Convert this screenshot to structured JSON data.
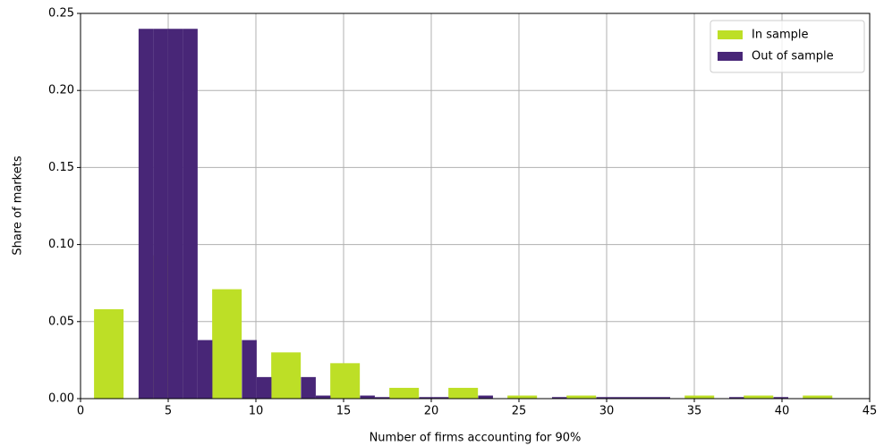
{
  "chart_data": {
    "type": "histogram",
    "xlabel": "Number of firms accounting for 90%",
    "ylabel": "Share of markets",
    "xlim": [
      0,
      45
    ],
    "ylim": [
      0,
      0.25
    ],
    "xticks": [
      0,
      5,
      10,
      15,
      20,
      25,
      30,
      35,
      40,
      45
    ],
    "yticks": [
      {
        "value": 0,
        "label": "0.00"
      },
      {
        "value": 0.05,
        "label": "0.05"
      },
      {
        "value": 0.1,
        "label": "0.10"
      },
      {
        "value": 0.15,
        "label": "0.15"
      },
      {
        "value": 0.2,
        "label": "0.20"
      },
      {
        "value": 0.25,
        "label": "0.25"
      }
    ],
    "grid": true,
    "legend": "upper right",
    "series": [
      {
        "name": "In sample",
        "color": "#bddf26",
        "bins": [
          0.77,
          2.454,
          4.138,
          5.822,
          7.506,
          9.19,
          10.874,
          12.558,
          14.242,
          15.926,
          17.61,
          19.294,
          20.978,
          22.662,
          24.346,
          26.03,
          27.714,
          29.398,
          31.082,
          32.766,
          34.45,
          36.134,
          37.818,
          39.502,
          41.186,
          42.87
        ],
        "values": [
          0.058,
          0,
          0.093,
          0,
          0.071,
          0,
          0.03,
          0,
          0.023,
          0,
          0.007,
          0,
          0.007,
          0,
          0.002,
          0,
          0.002,
          0,
          0,
          0,
          0.002,
          0,
          0.002,
          0,
          0.002
        ]
      },
      {
        "name": "Out of sample",
        "color": "#482677",
        "bins": [
          3.31,
          4.152,
          4.994,
          5.836,
          6.678,
          7.52,
          8.362,
          9.204,
          10.046,
          10.888,
          11.73,
          12.572,
          13.414,
          14.256,
          15.098,
          15.94,
          16.782,
          17.624,
          18.466,
          19.308,
          20.15,
          20.992,
          21.834,
          22.676,
          23.518,
          24.36,
          25.202,
          26.044,
          26.886,
          27.728,
          28.57,
          29.412,
          30.254,
          31.096,
          31.938,
          32.78,
          33.622,
          34.464,
          35.306,
          36.148,
          36.99,
          37.832,
          38.674,
          39.516,
          40.358
        ],
        "values": [
          0.24,
          0.24,
          0.24,
          0.24,
          0.038,
          0,
          0,
          0.038,
          0.014,
          0,
          0,
          0.014,
          0.002,
          0,
          0,
          0.002,
          0.001,
          0,
          0,
          0.001,
          0.001,
          0,
          0,
          0.002,
          0,
          0,
          0,
          0,
          0.001,
          0,
          0,
          0.001,
          0.001,
          0.001,
          0.001,
          0.001,
          0,
          0,
          0,
          0,
          0.001,
          0,
          0,
          0.001
        ]
      }
    ]
  }
}
